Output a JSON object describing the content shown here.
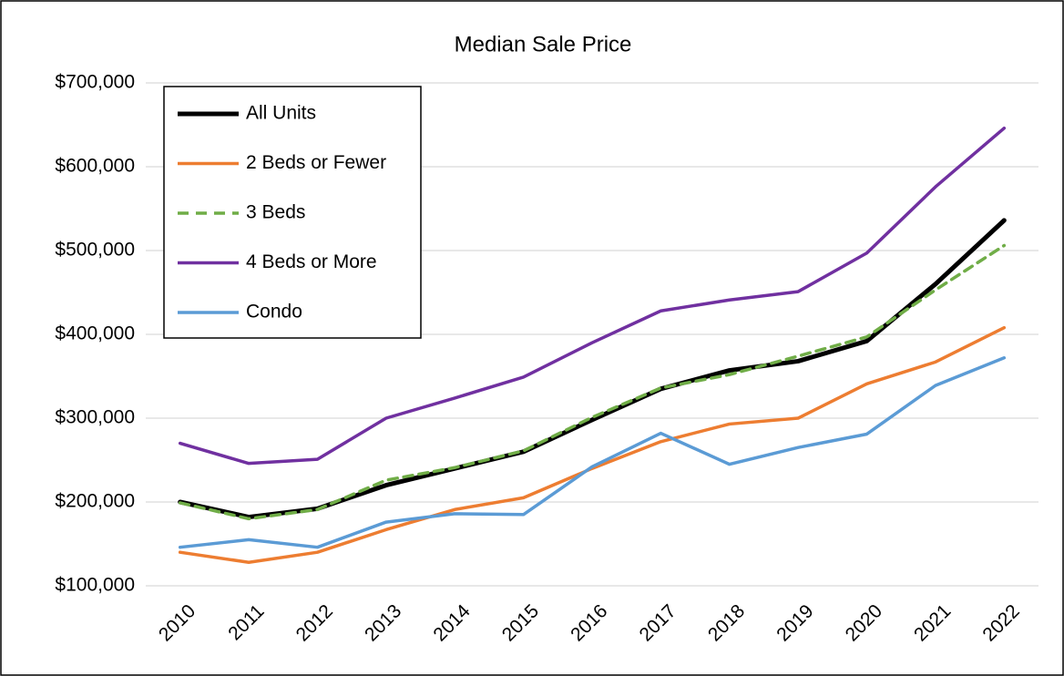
{
  "chart_data": {
    "type": "line",
    "title": "Median Sale Price",
    "categories": [
      "2010",
      "2011",
      "2012",
      "2013",
      "2014",
      "2015",
      "2016",
      "2017",
      "2018",
      "2019",
      "2020",
      "2021",
      "2022"
    ],
    "series": [
      {
        "name": "All Units",
        "color": "#000000",
        "width": 5,
        "values": [
          200000,
          182000,
          192000,
          220000,
          240000,
          260000,
          298000,
          335000,
          357000,
          368000,
          392000,
          460000,
          536000
        ]
      },
      {
        "name": "2 Beds or Fewer",
        "color": "#ed7d31",
        "width": 3.5,
        "values": [
          140000,
          128000,
          140000,
          167000,
          191000,
          205000,
          240000,
          272000,
          293000,
          300000,
          341000,
          367000,
          408000
        ]
      },
      {
        "name": "3 Beds",
        "color": "#70ad47",
        "width": 3.5,
        "dashed": true,
        "values": [
          199000,
          180000,
          191000,
          226000,
          241000,
          261000,
          301000,
          336000,
          352000,
          374000,
          397000,
          453000,
          506000
        ]
      },
      {
        "name": "4 Beds or More",
        "color": "#7030a0",
        "width": 3.5,
        "values": [
          270000,
          246000,
          251000,
          300000,
          324000,
          349000,
          390000,
          428000,
          441000,
          451000,
          497000,
          576000,
          646000
        ]
      },
      {
        "name": "Condo",
        "color": "#5b9bd5",
        "width": 3.5,
        "values": [
          146000,
          155000,
          146000,
          176000,
          186000,
          185000,
          242000,
          282000,
          245000,
          265000,
          281000,
          339000,
          372000
        ]
      }
    ],
    "ylim": [
      100000,
      700000
    ],
    "yticks": [
      {
        "value": 100000,
        "label": "$100,000"
      },
      {
        "value": 200000,
        "label": "$200,000"
      },
      {
        "value": 300000,
        "label": "$300,000"
      },
      {
        "value": 400000,
        "label": "$400,000"
      },
      {
        "value": 500000,
        "label": "$500,000"
      },
      {
        "value": 600000,
        "label": "$600,000"
      },
      {
        "value": 700000,
        "label": "$700,000"
      }
    ],
    "grid": true,
    "legend": "top-left"
  }
}
